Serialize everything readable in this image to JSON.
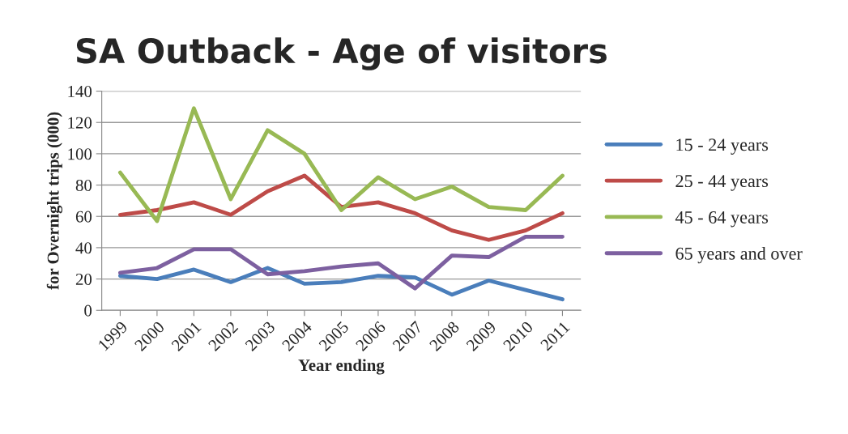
{
  "chart_data": {
    "type": "line",
    "title": "SA Outback - Age of visitors",
    "xlabel": "Year ending",
    "ylabel": "for Overnight trips (000)",
    "categories": [
      "1999",
      "2000",
      "2001",
      "2002",
      "2003",
      "2004",
      "2005",
      "2006",
      "2007",
      "2008",
      "2009",
      "2010",
      "2011"
    ],
    "series": [
      {
        "name": "15 - 24 years",
        "color": "#4a7ebb",
        "values": [
          22,
          20,
          26,
          18,
          27,
          17,
          18,
          22,
          21,
          10,
          19,
          13,
          7
        ]
      },
      {
        "name": "25 - 44 years",
        "color": "#be4b48",
        "values": [
          61,
          64,
          69,
          61,
          76,
          86,
          66,
          69,
          62,
          51,
          45,
          51,
          62
        ]
      },
      {
        "name": "45 - 64 years",
        "color": "#98b954",
        "values": [
          88,
          57,
          129,
          71,
          115,
          100,
          64,
          85,
          71,
          79,
          66,
          64,
          86
        ]
      },
      {
        "name": "65 years and over",
        "color": "#7d60a0",
        "values": [
          24,
          27,
          39,
          39,
          23,
          25,
          28,
          30,
          14,
          35,
          34,
          47,
          47
        ]
      }
    ],
    "ylim": [
      0,
      140
    ],
    "yticks": [
      0,
      20,
      40,
      60,
      80,
      100,
      120,
      140
    ],
    "grid": "y",
    "legend": "right",
    "marker": "none",
    "line_style": "solid"
  }
}
